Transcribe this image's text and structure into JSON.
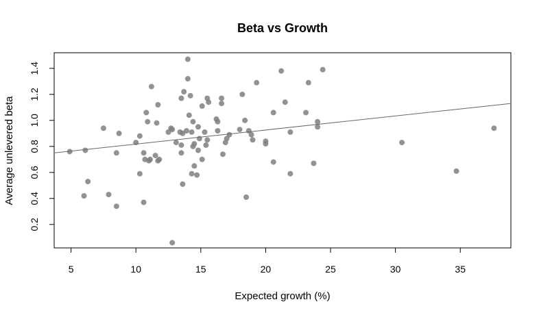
{
  "chart_data": {
    "type": "scatter",
    "title": "Beta vs Growth",
    "xlabel": "Expected growth (%)",
    "ylabel": "Average unlevered beta",
    "xlim": [
      3.7,
      38.9
    ],
    "ylim": [
      0.02,
      1.52
    ],
    "x_ticks": [
      5,
      10,
      15,
      20,
      25,
      30,
      35
    ],
    "y_ticks": [
      0.2,
      0.4,
      0.6,
      0.8,
      1.0,
      1.2,
      1.4
    ],
    "x_tick_labels": [
      "5",
      "10",
      "15",
      "20",
      "25",
      "30",
      "35"
    ],
    "y_tick_labels": [
      "0.2",
      "0.4",
      "0.6",
      "0.8",
      "1.0",
      "1.2",
      "1.4"
    ],
    "grid": false,
    "point_color": "#7f7f7f",
    "line_color": "#666666",
    "trend_line": {
      "x": [
        3.7,
        38.9
      ],
      "y": [
        0.75,
        1.13
      ]
    },
    "points": [
      [
        4.9,
        0.76
      ],
      [
        6.0,
        0.42
      ],
      [
        6.1,
        0.77
      ],
      [
        6.3,
        0.53
      ],
      [
        7.5,
        0.94
      ],
      [
        7.9,
        0.43
      ],
      [
        8.5,
        0.34
      ],
      [
        8.5,
        0.75
      ],
      [
        8.7,
        0.9
      ],
      [
        10.0,
        0.83
      ],
      [
        10.3,
        0.88
      ],
      [
        10.3,
        0.59
      ],
      [
        10.6,
        0.75
      ],
      [
        10.6,
        0.37
      ],
      [
        10.7,
        0.7
      ],
      [
        10.8,
        1.06
      ],
      [
        10.9,
        0.99
      ],
      [
        11.0,
        0.69
      ],
      [
        11.1,
        0.7
      ],
      [
        11.2,
        1.26
      ],
      [
        11.5,
        0.73
      ],
      [
        11.6,
        0.98
      ],
      [
        11.7,
        1.12
      ],
      [
        11.7,
        0.69
      ],
      [
        11.8,
        0.7
      ],
      [
        12.5,
        0.91
      ],
      [
        12.7,
        0.94
      ],
      [
        12.8,
        0.93
      ],
      [
        12.8,
        0.06
      ],
      [
        13.1,
        0.83
      ],
      [
        13.4,
        0.91
      ],
      [
        13.5,
        1.17
      ],
      [
        13.5,
        0.81
      ],
      [
        13.5,
        0.75
      ],
      [
        13.6,
        0.9
      ],
      [
        13.6,
        0.51
      ],
      [
        13.7,
        1.22
      ],
      [
        13.9,
        0.92
      ],
      [
        14.0,
        1.47
      ],
      [
        14.0,
        1.32
      ],
      [
        14.1,
        1.04
      ],
      [
        14.2,
        1.19
      ],
      [
        14.3,
        0.91
      ],
      [
        14.3,
        0.59
      ],
      [
        14.4,
        0.99
      ],
      [
        14.4,
        0.8
      ],
      [
        14.5,
        0.82
      ],
      [
        14.5,
        0.65
      ],
      [
        14.7,
        0.58
      ],
      [
        14.8,
        0.95
      ],
      [
        14.8,
        0.77
      ],
      [
        14.9,
        0.86
      ],
      [
        15.1,
        1.11
      ],
      [
        15.1,
        0.7
      ],
      [
        15.3,
        0.91
      ],
      [
        15.4,
        0.81
      ],
      [
        15.5,
        1.17
      ],
      [
        15.5,
        0.85
      ],
      [
        15.6,
        1.14
      ],
      [
        16.2,
        1.01
      ],
      [
        16.3,
        0.92
      ],
      [
        16.3,
        0.99
      ],
      [
        16.6,
        1.17
      ],
      [
        16.6,
        1.13
      ],
      [
        16.7,
        0.74
      ],
      [
        16.9,
        0.83
      ],
      [
        17.0,
        0.86
      ],
      [
        17.2,
        0.89
      ],
      [
        18.0,
        0.93
      ],
      [
        18.2,
        1.2
      ],
      [
        18.4,
        1.0
      ],
      [
        18.5,
        0.41
      ],
      [
        18.7,
        0.92
      ],
      [
        18.9,
        0.89
      ],
      [
        19.0,
        0.85
      ],
      [
        19.3,
        1.29
      ],
      [
        20.0,
        0.84
      ],
      [
        20.0,
        0.82
      ],
      [
        20.6,
        1.06
      ],
      [
        20.6,
        0.68
      ],
      [
        21.2,
        1.38
      ],
      [
        21.5,
        1.14
      ],
      [
        21.9,
        0.91
      ],
      [
        21.9,
        0.59
      ],
      [
        23.1,
        1.06
      ],
      [
        23.3,
        1.29
      ],
      [
        23.7,
        0.67
      ],
      [
        24.0,
        0.99
      ],
      [
        24.0,
        0.95
      ],
      [
        24.4,
        1.39
      ],
      [
        30.5,
        0.83
      ],
      [
        34.7,
        0.61
      ],
      [
        37.6,
        0.94
      ]
    ]
  }
}
